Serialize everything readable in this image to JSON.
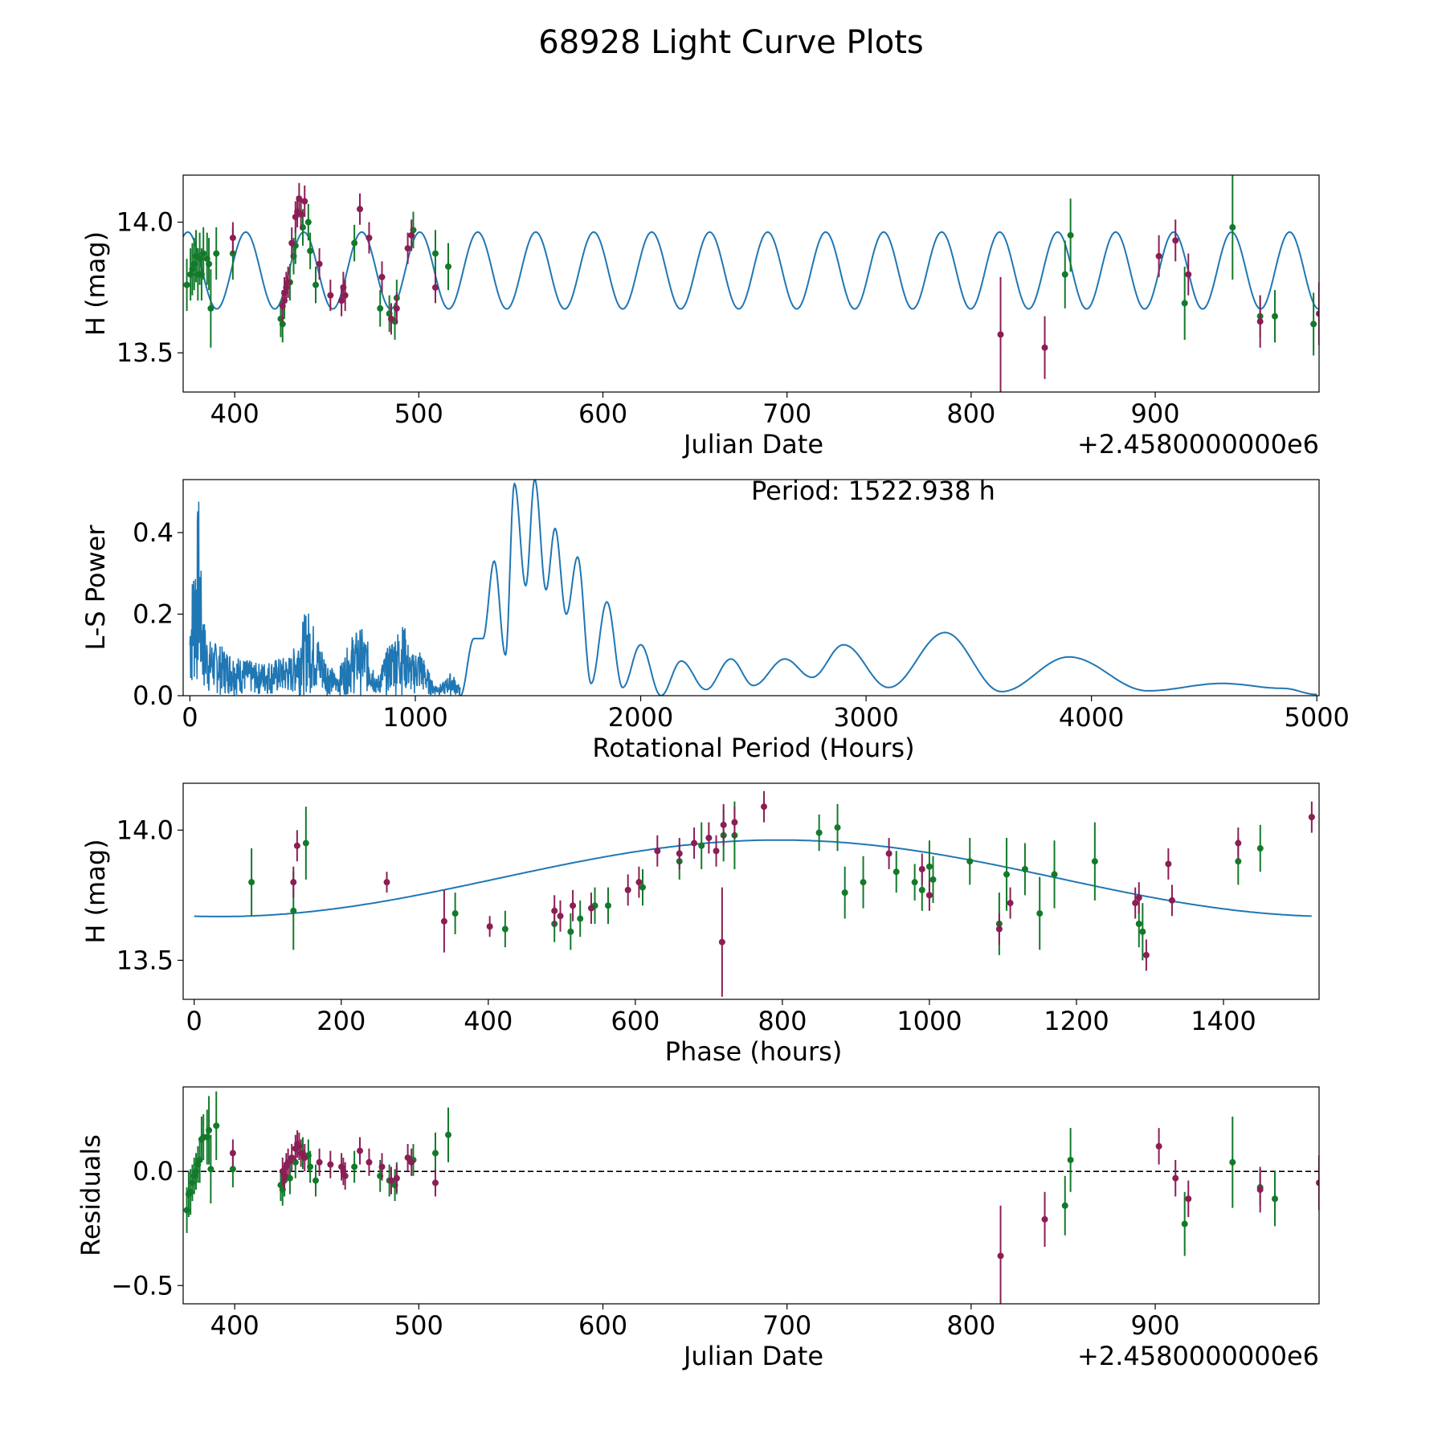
{
  "figure": {
    "title": "68928 Light Curve Plots"
  },
  "colors": {
    "model": "#1f77b4",
    "filter_g": "#137a2b",
    "filter_m": "#8b1e55",
    "axes": "#000000"
  },
  "chart_data": [
    {
      "id": "lightcurve",
      "type": "scatter",
      "title": "",
      "xlabel": "Julian Date",
      "ylabel": "H (mag)",
      "offset_text": "+2.4580000000e6",
      "xlim": [
        372,
        989
      ],
      "ylim": [
        13.35,
        14.18
      ],
      "xticks": [
        400,
        500,
        600,
        700,
        800,
        900
      ],
      "yticks": [
        13.5,
        14.0
      ],
      "ytick_labels": [
        "13.5",
        "14.0"
      ],
      "model": {
        "period_days": 31.5,
        "mean": 13.815,
        "amplitude": 0.147,
        "phase_ref_x": 437.5
      },
      "series": [
        {
          "name": "green",
          "color_key": "filter_g",
          "x": [
            374,
            376,
            377,
            378,
            379,
            380,
            381,
            382,
            383,
            385,
            386,
            387,
            390,
            399,
            425,
            426,
            427,
            430,
            432,
            433,
            437,
            440,
            441,
            444,
            465,
            479,
            484,
            487,
            488,
            497,
            509,
            516,
            851,
            854,
            916,
            942,
            957,
            965,
            986
          ],
          "y": [
            13.76,
            13.8,
            13.82,
            13.84,
            13.87,
            13.8,
            13.86,
            13.8,
            13.88,
            13.86,
            13.84,
            13.67,
            13.88,
            13.88,
            13.63,
            13.61,
            13.7,
            13.77,
            13.87,
            13.91,
            13.98,
            14.0,
            13.89,
            13.76,
            13.92,
            13.67,
            13.65,
            13.62,
            13.71,
            13.97,
            13.88,
            13.83,
            13.8,
            13.95,
            13.69,
            13.98,
            13.64,
            13.64,
            13.61
          ],
          "err": [
            0.1,
            0.1,
            0.1,
            0.1,
            0.1,
            0.1,
            0.1,
            0.1,
            0.1,
            0.1,
            0.1,
            0.15,
            0.1,
            0.1,
            0.07,
            0.07,
            0.07,
            0.07,
            0.07,
            0.07,
            0.07,
            0.07,
            0.07,
            0.07,
            0.07,
            0.07,
            0.07,
            0.07,
            0.07,
            0.07,
            0.09,
            0.09,
            0.13,
            0.14,
            0.14,
            0.2,
            0.08,
            0.1,
            0.12
          ]
        },
        {
          "name": "magenta",
          "color_key": "filter_m",
          "x": [
            399,
            426,
            427,
            428,
            429,
            431,
            433,
            434,
            435,
            436,
            438,
            446,
            452,
            458,
            459,
            460,
            468,
            473,
            480,
            485,
            488,
            494,
            496,
            509,
            816,
            840,
            902,
            911,
            918,
            957,
            989
          ],
          "y": [
            13.94,
            13.68,
            13.73,
            13.75,
            13.77,
            13.92,
            14.02,
            14.04,
            14.09,
            14.03,
            14.08,
            13.84,
            13.72,
            13.7,
            13.75,
            13.72,
            14.05,
            13.94,
            13.79,
            13.63,
            13.67,
            13.9,
            13.95,
            13.75,
            13.57,
            13.52,
            13.87,
            13.93,
            13.8,
            13.62,
            13.65
          ],
          "err": [
            0.06,
            0.06,
            0.06,
            0.06,
            0.06,
            0.06,
            0.06,
            0.06,
            0.06,
            0.06,
            0.06,
            0.06,
            0.06,
            0.06,
            0.06,
            0.06,
            0.06,
            0.06,
            0.06,
            0.06,
            0.06,
            0.06,
            0.06,
            0.06,
            0.22,
            0.12,
            0.08,
            0.08,
            0.08,
            0.1,
            0.12
          ]
        }
      ]
    },
    {
      "id": "periodogram",
      "type": "line",
      "title": "",
      "xlabel": "Rotational Period (Hours)",
      "ylabel": "L-S Power",
      "annotation": "Period: 1522.938 h",
      "xlim": [
        -30,
        5010
      ],
      "ylim": [
        0,
        0.53
      ],
      "xticks": [
        0,
        1000,
        2000,
        3000,
        4000,
        5000
      ],
      "yticks": [
        0.0,
        0.2,
        0.4
      ],
      "ytick_labels": [
        "0.0",
        "0.2",
        "0.4"
      ],
      "envelope": {
        "x": [
          0,
          10,
          25,
          40,
          50,
          60,
          80,
          120,
          200,
          300,
          450,
          520,
          600,
          650,
          720,
          760,
          800,
          830,
          850,
          900,
          950,
          980,
          1020,
          1080,
          1120,
          1160,
          1200
        ],
        "y": [
          0.22,
          0.3,
          0.4,
          0.5,
          0.3,
          0.2,
          0.14,
          0.13,
          0.1,
          0.08,
          0.1,
          0.22,
          0.1,
          0.05,
          0.15,
          0.17,
          0.12,
          0.04,
          0.08,
          0.15,
          0.18,
          0.1,
          0.12,
          0.03,
          0.03,
          0.06,
          0.02
        ]
      },
      "peaks": {
        "x": [
          1200,
          1260,
          1300,
          1350,
          1400,
          1440,
          1490,
          1530,
          1580,
          1620,
          1670,
          1720,
          1780,
          1850,
          1920,
          2000,
          2090,
          2180,
          2290,
          2400,
          2500,
          2640,
          2760,
          2900,
          3100,
          3350,
          3600,
          3900,
          4250,
          4580,
          4850,
          5000
        ],
        "y": [
          0.0,
          0.14,
          0.14,
          0.33,
          0.1,
          0.52,
          0.27,
          0.53,
          0.26,
          0.41,
          0.2,
          0.34,
          0.03,
          0.23,
          0.02,
          0.125,
          0.0,
          0.085,
          0.015,
          0.09,
          0.025,
          0.09,
          0.045,
          0.125,
          0.02,
          0.155,
          0.01,
          0.095,
          0.012,
          0.03,
          0.018,
          0.003
        ]
      }
    },
    {
      "id": "phased",
      "type": "scatter",
      "title": "",
      "xlabel": "Phase (hours)",
      "ylabel": "H (mag)",
      "xlim": [
        -15,
        1530
      ],
      "ylim": [
        13.35,
        14.18
      ],
      "xticks": [
        0,
        200,
        400,
        600,
        800,
        1000,
        1200,
        1400
      ],
      "yticks": [
        13.5,
        14.0
      ],
      "ytick_labels": [
        "13.5",
        "14.0"
      ],
      "model": {
        "period_hours": 1522.938,
        "mean": 13.815,
        "amplitude": 0.147,
        "max_phase": 795
      },
      "series": [
        {
          "name": "green",
          "color_key": "filter_g",
          "x": [
            78,
            135,
            152,
            355,
            423,
            490,
            512,
            525,
            545,
            563,
            610,
            660,
            690,
            720,
            735,
            850,
            875,
            885,
            910,
            955,
            980,
            990,
            1000,
            1005,
            1055,
            1095,
            1105,
            1130,
            1150,
            1170,
            1225,
            1285,
            1290,
            1420,
            1450
          ],
          "y": [
            13.8,
            13.69,
            13.95,
            13.68,
            13.62,
            13.64,
            13.61,
            13.66,
            13.71,
            13.71,
            13.78,
            13.88,
            13.94,
            13.98,
            13.98,
            13.99,
            14.01,
            13.76,
            13.8,
            13.84,
            13.8,
            13.77,
            13.86,
            13.81,
            13.88,
            13.64,
            13.83,
            13.85,
            13.68,
            13.83,
            13.88,
            13.64,
            13.61,
            13.88,
            13.93
          ],
          "err": [
            0.13,
            0.15,
            0.14,
            0.08,
            0.07,
            0.07,
            0.07,
            0.07,
            0.07,
            0.07,
            0.07,
            0.07,
            0.09,
            0.1,
            0.13,
            0.07,
            0.09,
            0.1,
            0.1,
            0.08,
            0.07,
            0.08,
            0.1,
            0.09,
            0.09,
            0.12,
            0.14,
            0.1,
            0.14,
            0.13,
            0.15,
            0.09,
            0.11,
            0.09,
            0.09
          ]
        },
        {
          "name": "magenta",
          "color_key": "filter_m",
          "x": [
            135,
            140,
            262,
            340,
            402,
            490,
            498,
            515,
            540,
            590,
            605,
            630,
            660,
            680,
            700,
            710,
            720,
            735,
            775,
            945,
            990,
            1000,
            1095,
            1110,
            1280,
            1285,
            1295,
            1325,
            1330,
            1420,
            1520
          ],
          "y": [
            13.8,
            13.94,
            13.8,
            13.65,
            13.63,
            13.69,
            13.67,
            13.71,
            13.7,
            13.77,
            13.8,
            13.92,
            13.91,
            13.95,
            13.97,
            13.92,
            14.02,
            14.03,
            14.09,
            13.91,
            13.85,
            13.75,
            13.62,
            13.72,
            13.72,
            13.74,
            13.52,
            13.87,
            13.73,
            13.95,
            14.05
          ],
          "err": [
            0.06,
            0.06,
            0.04,
            0.12,
            0.04,
            0.06,
            0.06,
            0.06,
            0.06,
            0.06,
            0.06,
            0.06,
            0.06,
            0.06,
            0.06,
            0.06,
            0.08,
            0.06,
            0.06,
            0.06,
            0.06,
            0.06,
            0.06,
            0.06,
            0.06,
            0.06,
            0.06,
            0.06,
            0.06,
            0.06,
            0.06
          ]
        },
        {
          "name": "magenta-outlier",
          "color_key": "filter_m",
          "x": [
            718
          ],
          "y": [
            13.57
          ],
          "err": [
            0.21
          ]
        }
      ]
    },
    {
      "id": "residuals",
      "type": "scatter",
      "title": "",
      "xlabel": "Julian Date",
      "ylabel": "Residuals",
      "offset_text": "+2.4580000000e6",
      "xlim": [
        372,
        989
      ],
      "ylim": [
        -0.58,
        0.37
      ],
      "xticks": [
        400,
        500,
        600,
        700,
        800,
        900
      ],
      "yticks": [
        -0.5,
        0.0
      ],
      "ytick_labels": [
        "−0.5",
        "0.0"
      ],
      "zero_line": true,
      "series": [
        {
          "name": "green",
          "color_key": "filter_g",
          "x": [
            374,
            375,
            376,
            377,
            378,
            379,
            380,
            381,
            382,
            383,
            385,
            386,
            387,
            390,
            399,
            425,
            426,
            427,
            430,
            433,
            437,
            440,
            441,
            444,
            465,
            479,
            484,
            487,
            488,
            497,
            509,
            516,
            851,
            854,
            916,
            942,
            957,
            965
          ],
          "y": [
            -0.17,
            -0.1,
            -0.09,
            -0.05,
            -0.02,
            0.0,
            0.03,
            0.05,
            0.14,
            0.15,
            0.15,
            0.18,
            0.01,
            0.2,
            0.01,
            -0.06,
            -0.08,
            -0.04,
            -0.03,
            0.04,
            0.08,
            0.07,
            0.02,
            -0.04,
            0.02,
            -0.02,
            -0.04,
            -0.06,
            -0.03,
            0.05,
            0.08,
            0.16,
            -0.15,
            0.05,
            -0.23,
            0.04,
            -0.07,
            -0.12
          ],
          "err": [
            0.1,
            0.1,
            0.1,
            0.08,
            0.08,
            0.08,
            0.08,
            0.1,
            0.1,
            0.1,
            0.12,
            0.15,
            0.15,
            0.15,
            0.08,
            0.07,
            0.07,
            0.07,
            0.07,
            0.07,
            0.07,
            0.07,
            0.07,
            0.07,
            0.07,
            0.07,
            0.07,
            0.07,
            0.07,
            0.07,
            0.09,
            0.12,
            0.13,
            0.14,
            0.14,
            0.2,
            0.08,
            0.12
          ]
        },
        {
          "name": "magenta",
          "color_key": "filter_m",
          "x": [
            399,
            426,
            427,
            428,
            429,
            431,
            433,
            434,
            435,
            436,
            438,
            446,
            452,
            458,
            459,
            460,
            468,
            473,
            480,
            485,
            488,
            494,
            496,
            509,
            816,
            840,
            902,
            911,
            918,
            957,
            989
          ],
          "y": [
            0.08,
            0.0,
            -0.02,
            0.02,
            0.04,
            0.06,
            0.1,
            0.12,
            0.11,
            0.08,
            0.06,
            0.04,
            0.03,
            0.02,
            0.0,
            -0.02,
            0.09,
            0.04,
            0.02,
            -0.04,
            -0.03,
            0.06,
            0.04,
            -0.05,
            -0.37,
            -0.21,
            0.11,
            -0.03,
            -0.12,
            -0.08,
            -0.05
          ],
          "err": [
            0.06,
            0.06,
            0.06,
            0.06,
            0.06,
            0.06,
            0.06,
            0.06,
            0.06,
            0.06,
            0.06,
            0.06,
            0.06,
            0.06,
            0.06,
            0.06,
            0.06,
            0.06,
            0.06,
            0.06,
            0.06,
            0.06,
            0.06,
            0.06,
            0.22,
            0.12,
            0.08,
            0.08,
            0.08,
            0.1,
            0.12
          ]
        }
      ]
    }
  ]
}
